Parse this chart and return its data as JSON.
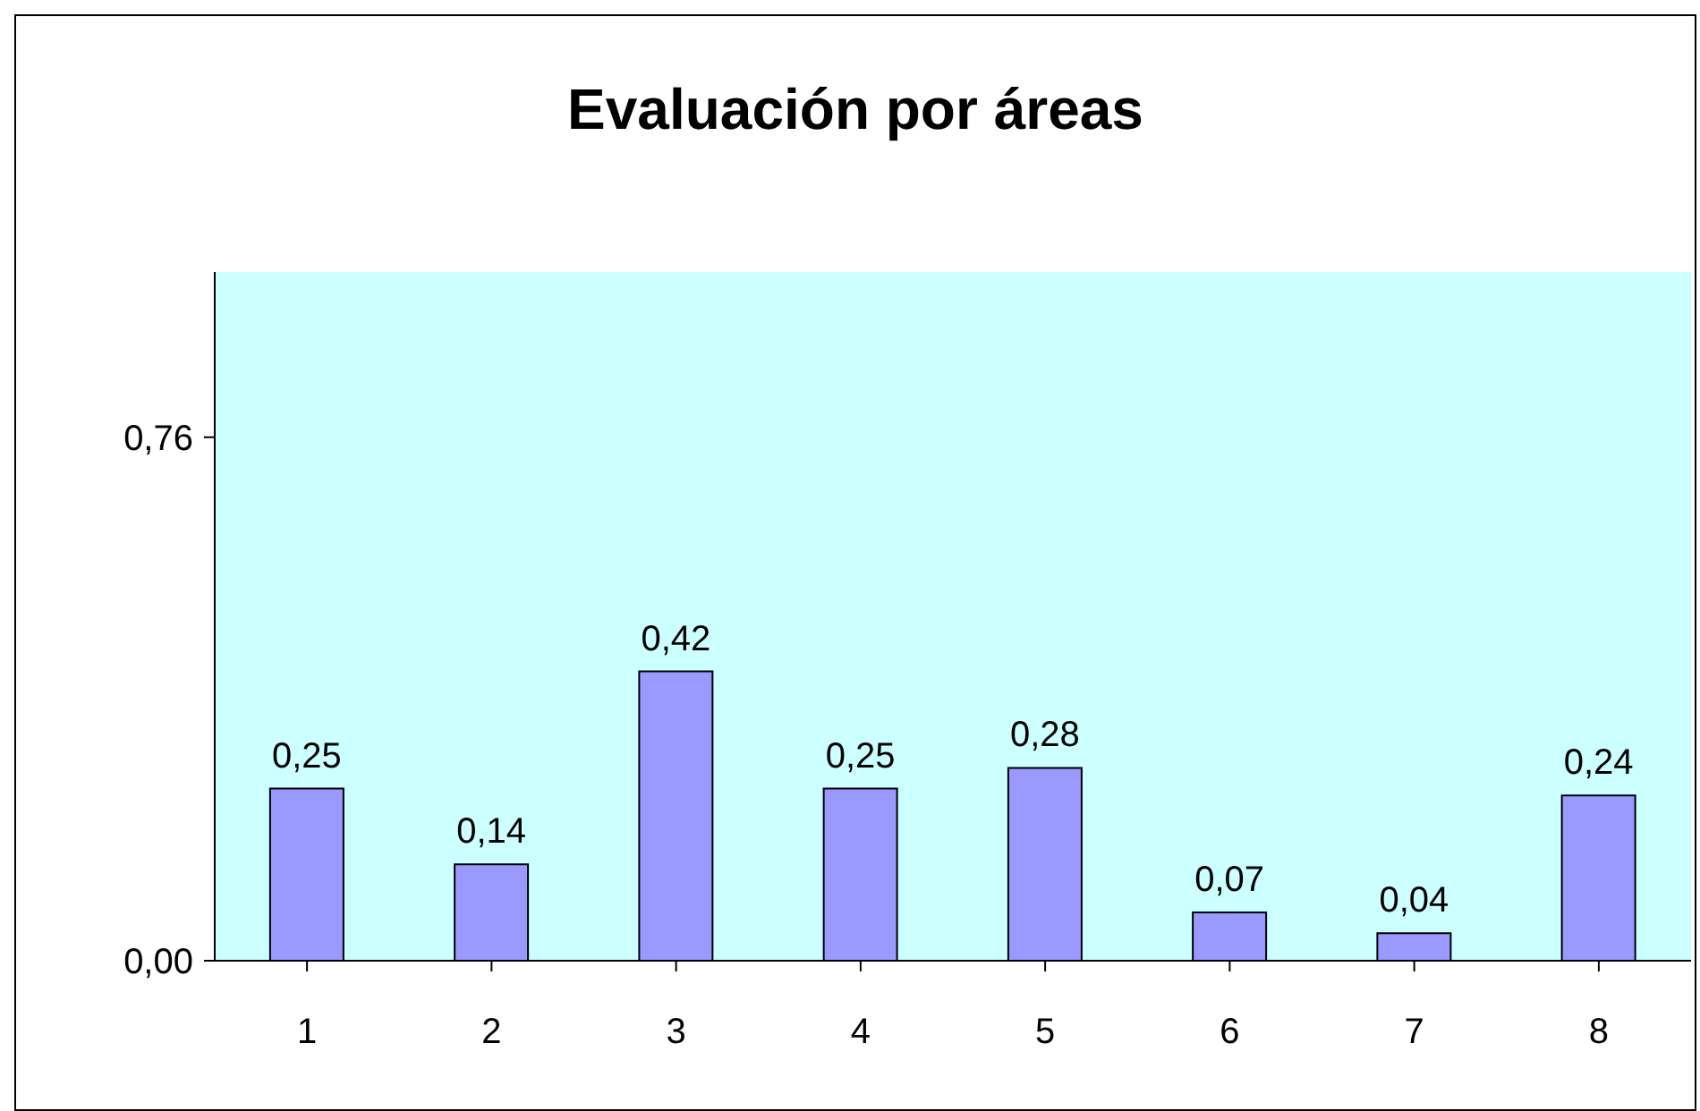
{
  "chart_data": {
    "type": "bar",
    "title": "Evaluación por áreas",
    "categories": [
      "1",
      "2",
      "3",
      "4",
      "5",
      "6",
      "7",
      "8"
    ],
    "values": [
      0.25,
      0.14,
      0.42,
      0.25,
      0.28,
      0.07,
      0.04,
      0.24
    ],
    "value_labels": [
      "0,25",
      "0,14",
      "0,42",
      "0,25",
      "0,28",
      "0,07",
      "0,04",
      "0,24"
    ],
    "color": "#9999ff",
    "ylim": [
      0,
      1
    ],
    "yticks": [
      {
        "value": 0,
        "label": "0,00"
      },
      {
        "value": 0.76,
        "label": "0,76"
      }
    ],
    "grid": false,
    "legend": false
  }
}
